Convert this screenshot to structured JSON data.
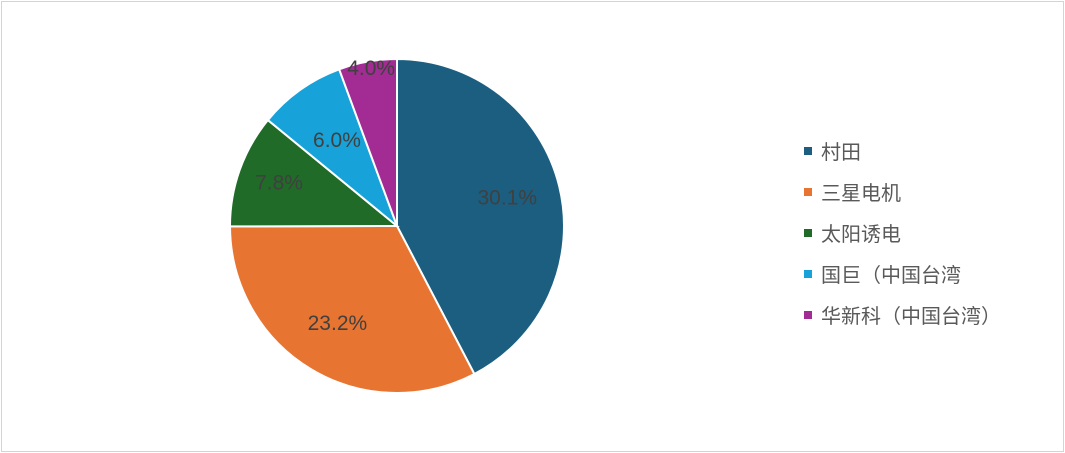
{
  "chart_data": {
    "type": "pie",
    "title": "",
    "slices": [
      {
        "label": "村田",
        "value": 30.1,
        "value_label": "30.1%",
        "color": "#1b5e80"
      },
      {
        "label": "三星电机",
        "value": 23.2,
        "value_label": "23.2%",
        "color": "#e87431"
      },
      {
        "label": "太阳诱电",
        "value": 7.8,
        "value_label": "7.8%",
        "color": "#1f6b27"
      },
      {
        "label": "国巨（中国台湾",
        "value": 6.0,
        "value_label": "6.0%",
        "color": "#17a3d9"
      },
      {
        "label": "华新科（中国台湾）",
        "value": 4.0,
        "value_label": "4.0%",
        "color": "#a22b94"
      }
    ],
    "start_angle_deg": 0,
    "direction": "clockwise",
    "legend_position": "right"
  }
}
